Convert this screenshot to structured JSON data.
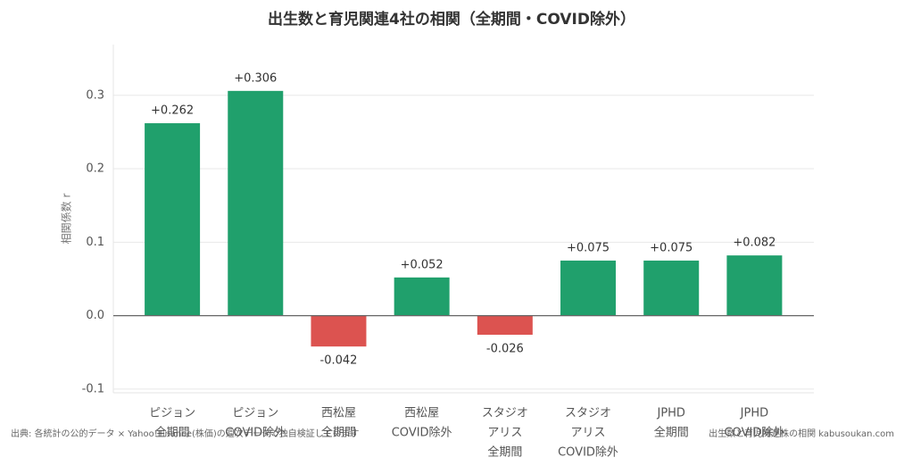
{
  "chart_data": {
    "type": "bar",
    "title": "出生数と育児関連4社の相関（全期間・COVID除外）",
    "y_label": "相関係数 r",
    "categories": [
      [
        "ピジョン",
        "全期間"
      ],
      [
        "ピジョン",
        "COVID除外"
      ],
      [
        "西松屋",
        "全期間"
      ],
      [
        "西松屋",
        "COVID除外"
      ],
      [
        "スタジオ",
        "アリス",
        "全期間"
      ],
      [
        "スタジオ",
        "アリス",
        "COVID除外"
      ],
      [
        "JPHD",
        "全期間"
      ],
      [
        "JPHD",
        "COVID除外"
      ]
    ],
    "values": [
      0.262,
      0.306,
      -0.042,
      0.052,
      -0.026,
      0.075,
      0.075,
      0.082
    ],
    "value_labels": [
      "+0.262",
      "+0.306",
      "-0.042",
      "+0.052",
      "-0.026",
      "+0.075",
      "+0.075",
      "+0.082"
    ],
    "colors": [
      "#20a06c",
      "#20a06c",
      "#dc5350",
      "#20a06c",
      "#dc5350",
      "#20a06c",
      "#20a06c",
      "#20a06c"
    ],
    "ylim": [
      -0.105,
      0.369
    ],
    "yticks": [
      -0.1,
      {
        "value": 0,
        "label": "0.0"
      },
      0.1,
      0.2,
      0.3
    ],
    "grid": true,
    "source": "出典: 各統計の公的データ × Yahoo!Finance(株価)の週次データで独自検証しています",
    "credit": "出生数と育児関連株の相関 kabusoukan.com"
  }
}
